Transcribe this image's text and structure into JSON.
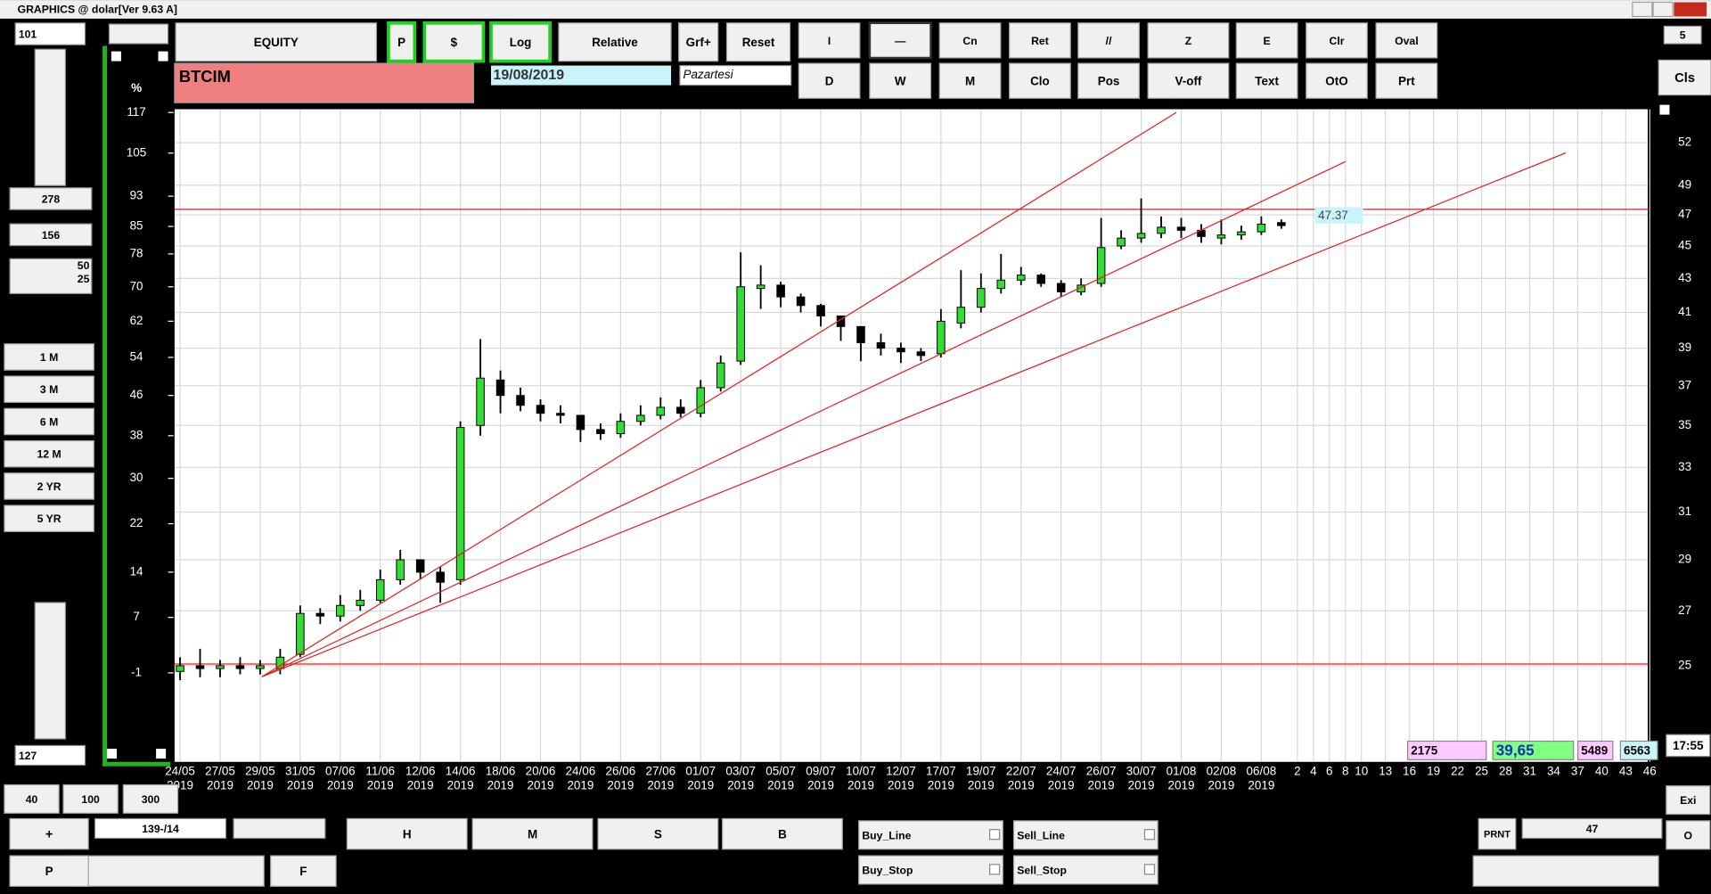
{
  "window": {
    "title": "GRAPHICS  @ dolar[Ver 9.63 A]"
  },
  "toolbar": {
    "row1": [
      "EQUITY",
      "P",
      "$",
      "Log",
      "Relative",
      "Grf+",
      "Reset",
      "I",
      "—",
      "Cn",
      "Ret",
      "//",
      "Z",
      "E",
      "Clr",
      "Oval"
    ],
    "row2": [
      "D",
      "W",
      "M",
      "Clo",
      "Pos",
      "V-off",
      "Text",
      "OtO",
      "Prt"
    ],
    "close": "Cls",
    "page": "5"
  },
  "header": {
    "symbol": "BTCIM",
    "date": "19/08/2019",
    "day": "Pazartesi"
  },
  "left_panel": {
    "top_value": "101",
    "field1": "278",
    "field2": "156",
    "field3a": "50",
    "field3b": "25",
    "periods": [
      "1 M",
      "3 M",
      "6 M",
      "12 M",
      "2 YR",
      "5 YR"
    ],
    "bottom_value": "127",
    "zoom": [
      "40",
      "100",
      "300"
    ],
    "plus": "+",
    "position": "139-/14",
    "p": "P",
    "f": "F"
  },
  "bottom_panel": {
    "hmsb": [
      "H",
      "M",
      "S",
      "B"
    ],
    "orders": [
      "Buy_Line",
      "Sell_Line",
      "Buy_Stop",
      "Sell_Stop"
    ],
    "print": "PRNT",
    "print_value": "47",
    "exit": "Exi",
    "o": "O"
  },
  "status": {
    "values": [
      "2175",
      "39,65",
      "5489",
      "6563"
    ],
    "time": "17:55"
  },
  "chart_data": {
    "type": "candlestick",
    "categories": [
      "24/05",
      null,
      "27/05",
      null,
      "29/05",
      null,
      "31/05",
      null,
      "07/06",
      null,
      "11/06",
      null,
      "12/06",
      null,
      "14/06",
      null,
      "18/06",
      null,
      "20/06",
      null,
      "24/06",
      null,
      "26/06",
      null,
      "27/06",
      null,
      "01/07",
      null,
      "03/07",
      null,
      "05/07",
      null,
      "09/07",
      null,
      "10/07",
      null,
      "12/07",
      null,
      "17/07",
      null,
      "19/07",
      null,
      "22/07",
      null,
      "24/07",
      null,
      "26/07",
      null,
      "30/07",
      null,
      "01/08",
      null,
      "02/08",
      null,
      "06/08",
      null
    ],
    "x_years": [
      "2019",
      null,
      "2019",
      null,
      "2019",
      null,
      "2019",
      null,
      "2019",
      null,
      "2019",
      null,
      "2019",
      null,
      "2019",
      null,
      "2019",
      null,
      "2019",
      null,
      "2019",
      null,
      "2019",
      null,
      "2019",
      null,
      "2019",
      null,
      "2019",
      null,
      "2019",
      null,
      "2019",
      null,
      "2019",
      null,
      "2019",
      null,
      "2019",
      null,
      "2019",
      null,
      "2019",
      null,
      "2019",
      null,
      "2019",
      null,
      "2019",
      null,
      "2019",
      null,
      "2019",
      null,
      "2019",
      null
    ],
    "open": [
      24.8,
      25.0,
      24.9,
      25.0,
      24.9,
      24.9,
      25.4,
      26.9,
      26.8,
      27.2,
      27.4,
      28.2,
      29.0,
      28.5,
      28.2,
      35.0,
      37.3,
      36.5,
      36.0,
      35.6,
      35.5,
      34.8,
      34.6,
      35.2,
      35.5,
      35.9,
      35.6,
      36.9,
      38.3,
      42.4,
      42.6,
      41.9,
      41.4,
      40.8,
      40.2,
      39.3,
      39.0,
      38.8,
      38.7,
      40.4,
      41.3,
      42.4,
      42.9,
      43.2,
      42.7,
      42.2,
      42.7,
      45.0,
      45.5,
      45.8,
      46.2,
      46.0,
      45.5,
      45.7,
      45.9,
      46.5
    ],
    "high": [
      25.3,
      25.6,
      25.2,
      25.3,
      25.2,
      25.6,
      27.2,
      27.1,
      27.6,
      27.8,
      28.6,
      29.4,
      29.0,
      28.7,
      35.2,
      39.5,
      37.8,
      36.9,
      36.3,
      36.0,
      35.4,
      35.1,
      35.6,
      36.0,
      36.4,
      36.3,
      37.3,
      38.6,
      44.6,
      43.8,
      42.8,
      42.1,
      41.5,
      40.8,
      39.9,
      39.8,
      39.3,
      39.0,
      41.2,
      43.5,
      43.3,
      44.5,
      43.7,
      43.3,
      42.9,
      43.0,
      46.8,
      46.0,
      48.1,
      46.9,
      46.8,
      46.4,
      46.7,
      46.3,
      46.9,
      46.7
    ],
    "low": [
      24.5,
      24.6,
      24.6,
      24.7,
      24.7,
      24.7,
      25.3,
      26.5,
      26.6,
      27.0,
      27.3,
      28.0,
      28.2,
      27.3,
      28.0,
      34.5,
      35.6,
      35.7,
      35.2,
      35.1,
      34.2,
      34.3,
      34.4,
      35.0,
      35.3,
      35.4,
      35.4,
      36.7,
      38.1,
      41.2,
      41.3,
      41.0,
      40.2,
      39.4,
      38.3,
      38.6,
      38.2,
      38.3,
      38.5,
      40.1,
      41.0,
      42.1,
      42.6,
      42.5,
      41.9,
      42.0,
      42.5,
      44.8,
      45.2,
      45.5,
      45.5,
      45.2,
      45.1,
      45.4,
      45.7,
      46.1
    ],
    "close": [
      25.0,
      24.9,
      25.0,
      24.9,
      25.0,
      25.3,
      26.9,
      26.8,
      27.2,
      27.4,
      28.2,
      29.0,
      28.5,
      28.1,
      34.9,
      37.4,
      36.5,
      36.0,
      35.6,
      35.5,
      34.8,
      34.6,
      35.2,
      35.5,
      35.9,
      35.6,
      36.9,
      38.2,
      42.5,
      42.6,
      41.9,
      41.4,
      40.8,
      40.2,
      39.3,
      39.0,
      38.8,
      38.6,
      40.5,
      41.3,
      42.4,
      42.9,
      43.2,
      42.7,
      42.2,
      42.6,
      44.9,
      45.5,
      45.8,
      46.2,
      46.0,
      45.6,
      45.7,
      45.9,
      46.4,
      46.3
    ],
    "colors": {
      "up": "#33dd33",
      "down": "#000000",
      "hline": "#e02020",
      "grid": "#d8d8d8"
    },
    "log_scale": true,
    "grid": true,
    "ylim": [
      21.85,
      54.5
    ],
    "yticks": [
      52,
      49,
      47,
      45,
      43,
      41,
      39,
      37,
      35,
      33,
      31,
      29,
      27,
      25
    ],
    "y2_label": "%",
    "y2lim": [
      -12.6,
      118
    ],
    "y2ticks": [
      117,
      105,
      93,
      85,
      78,
      70,
      62,
      54,
      46,
      38,
      30,
      22,
      14,
      7,
      -1
    ],
    "hlines": [
      47.37,
      25.06
    ],
    "last_price": 47.37,
    "future_xticks": [
      2,
      4,
      6,
      8,
      10,
      13,
      16,
      19,
      22,
      25,
      28,
      31,
      34,
      37,
      40,
      43,
      46
    ]
  }
}
